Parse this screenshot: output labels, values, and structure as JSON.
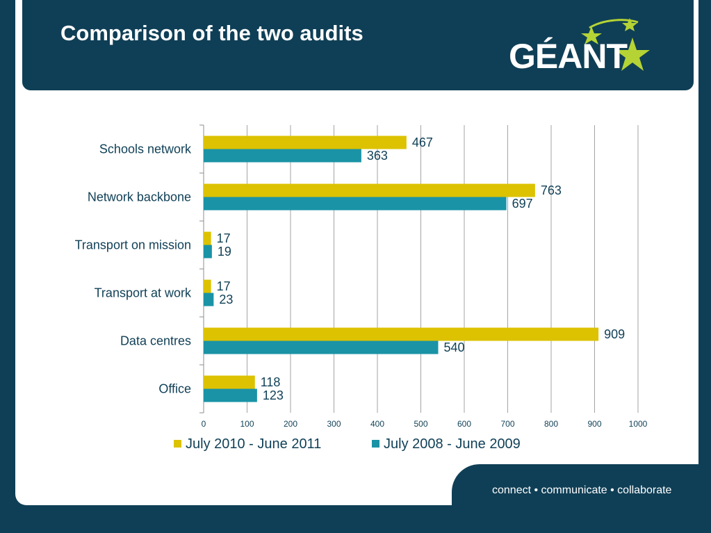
{
  "slide": {
    "title": "Comparison of the two audits",
    "logo_text": "GÉANT",
    "footer": "connect • communicate • collaborate"
  },
  "colors": {
    "background": "#0f3f56",
    "series_2010": "#dcc200",
    "series_2008": "#1a93a6",
    "text": "#0f3f56",
    "logo_star": "#b5d334"
  },
  "chart_data": {
    "type": "bar",
    "orientation": "horizontal",
    "categories": [
      "Schools network",
      "Network backbone",
      "Transport on mission",
      "Transport at work",
      "Data centres",
      "Office"
    ],
    "series": [
      {
        "name": "July 2010 - June 2011",
        "values": [
          467,
          763,
          17,
          17,
          909,
          118
        ]
      },
      {
        "name": "July 2008 - June 2009",
        "values": [
          363,
          697,
          19,
          23,
          540,
          123
        ]
      }
    ],
    "xlim": [
      0,
      1000
    ],
    "xticks": [
      0,
      100,
      200,
      300,
      400,
      500,
      600,
      700,
      800,
      900,
      1000
    ],
    "grid": "vertical",
    "legend": "bottom",
    "data_labels": true
  }
}
